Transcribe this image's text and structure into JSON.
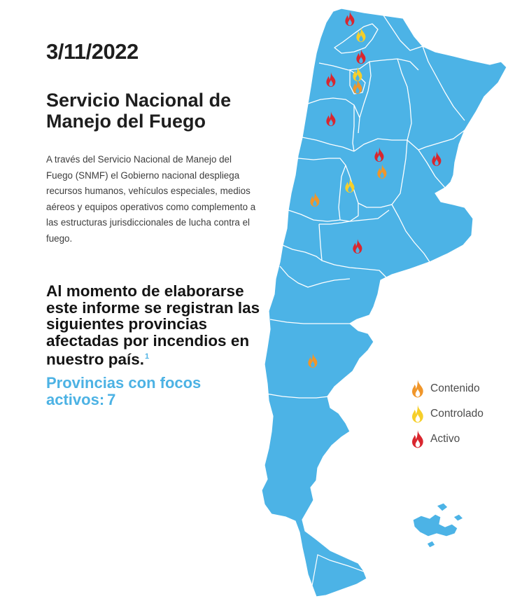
{
  "header": {
    "date": "3/11/2022",
    "title": "Servicio Nacional de Manejo del Fuego"
  },
  "body": {
    "description": "A través del Servicio Nacional de Manejo del Fuego (SNMF) el Gobierno nacional despliega recursos humanos, vehículos especiales, medios aéreos y equipos operativos como complemento a las estructuras jurisdiccionales de lucha contra el fuego.",
    "lead_text": "Al momento de elaborarse este informe se registran las siguientes provincias afectadas por incendios en nuestro país.",
    "lead_footnote": "1",
    "active_label": "Provincias con focos activos:",
    "active_count": "7"
  },
  "colors": {
    "map_fill": "#4cb3e6",
    "border": "#ffffff",
    "contenido": "#f0962a",
    "controlado": "#f6cf2a",
    "activo": "#d9262e"
  },
  "legend": [
    {
      "status": "contenido",
      "label": "Contenido",
      "icon": "fire-icon"
    },
    {
      "status": "controlado",
      "label": "Controlado",
      "icon": "fire-icon"
    },
    {
      "status": "activo",
      "label": "Activo",
      "icon": "fire-icon"
    }
  ],
  "markers": [
    {
      "status": "activo"
    },
    {
      "status": "controlado"
    },
    {
      "status": "activo"
    },
    {
      "status": "controlado"
    },
    {
      "status": "contenido"
    },
    {
      "status": "activo"
    },
    {
      "status": "activo"
    },
    {
      "status": "activo"
    },
    {
      "status": "contenido"
    },
    {
      "status": "activo"
    },
    {
      "status": "controlado"
    },
    {
      "status": "contenido"
    },
    {
      "status": "activo"
    },
    {
      "status": "contenido"
    }
  ]
}
